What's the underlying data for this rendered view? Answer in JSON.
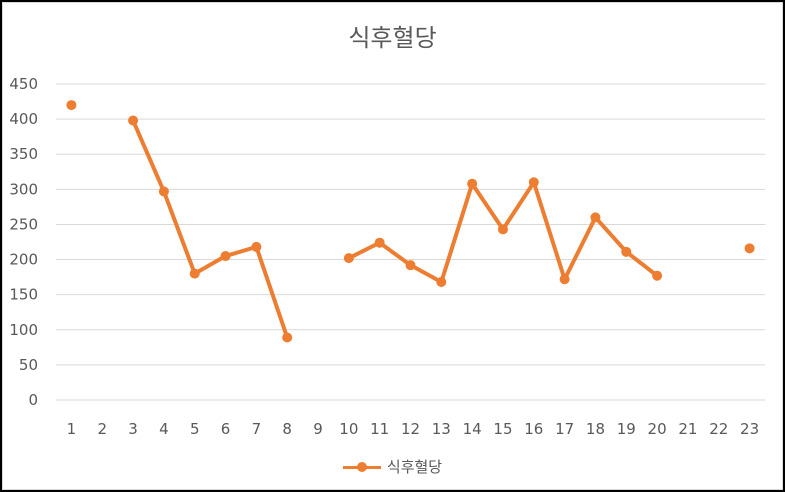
{
  "chart_data": {
    "type": "line",
    "title": "식후혈당",
    "xlabel": "",
    "ylabel": "",
    "ylim": [
      0,
      450
    ],
    "yticks": [
      0,
      50,
      100,
      150,
      200,
      250,
      300,
      350,
      400,
      450
    ],
    "categories": [
      "1",
      "2",
      "3",
      "4",
      "5",
      "6",
      "7",
      "8",
      "9",
      "10",
      "11",
      "12",
      "13",
      "14",
      "15",
      "16",
      "17",
      "18",
      "19",
      "20",
      "21",
      "22",
      "23"
    ],
    "series": [
      {
        "name": "식후혈당",
        "values": [
          420,
          null,
          398,
          297,
          180,
          205,
          218,
          89,
          null,
          202,
          224,
          192,
          168,
          308,
          243,
          310,
          172,
          260,
          211,
          177,
          null,
          null,
          216
        ]
      }
    ],
    "grid": true,
    "legend_position": "bottom",
    "colors": {
      "series": "#ED7D31",
      "grid": "#d9d9d9",
      "text": "#595959"
    }
  }
}
